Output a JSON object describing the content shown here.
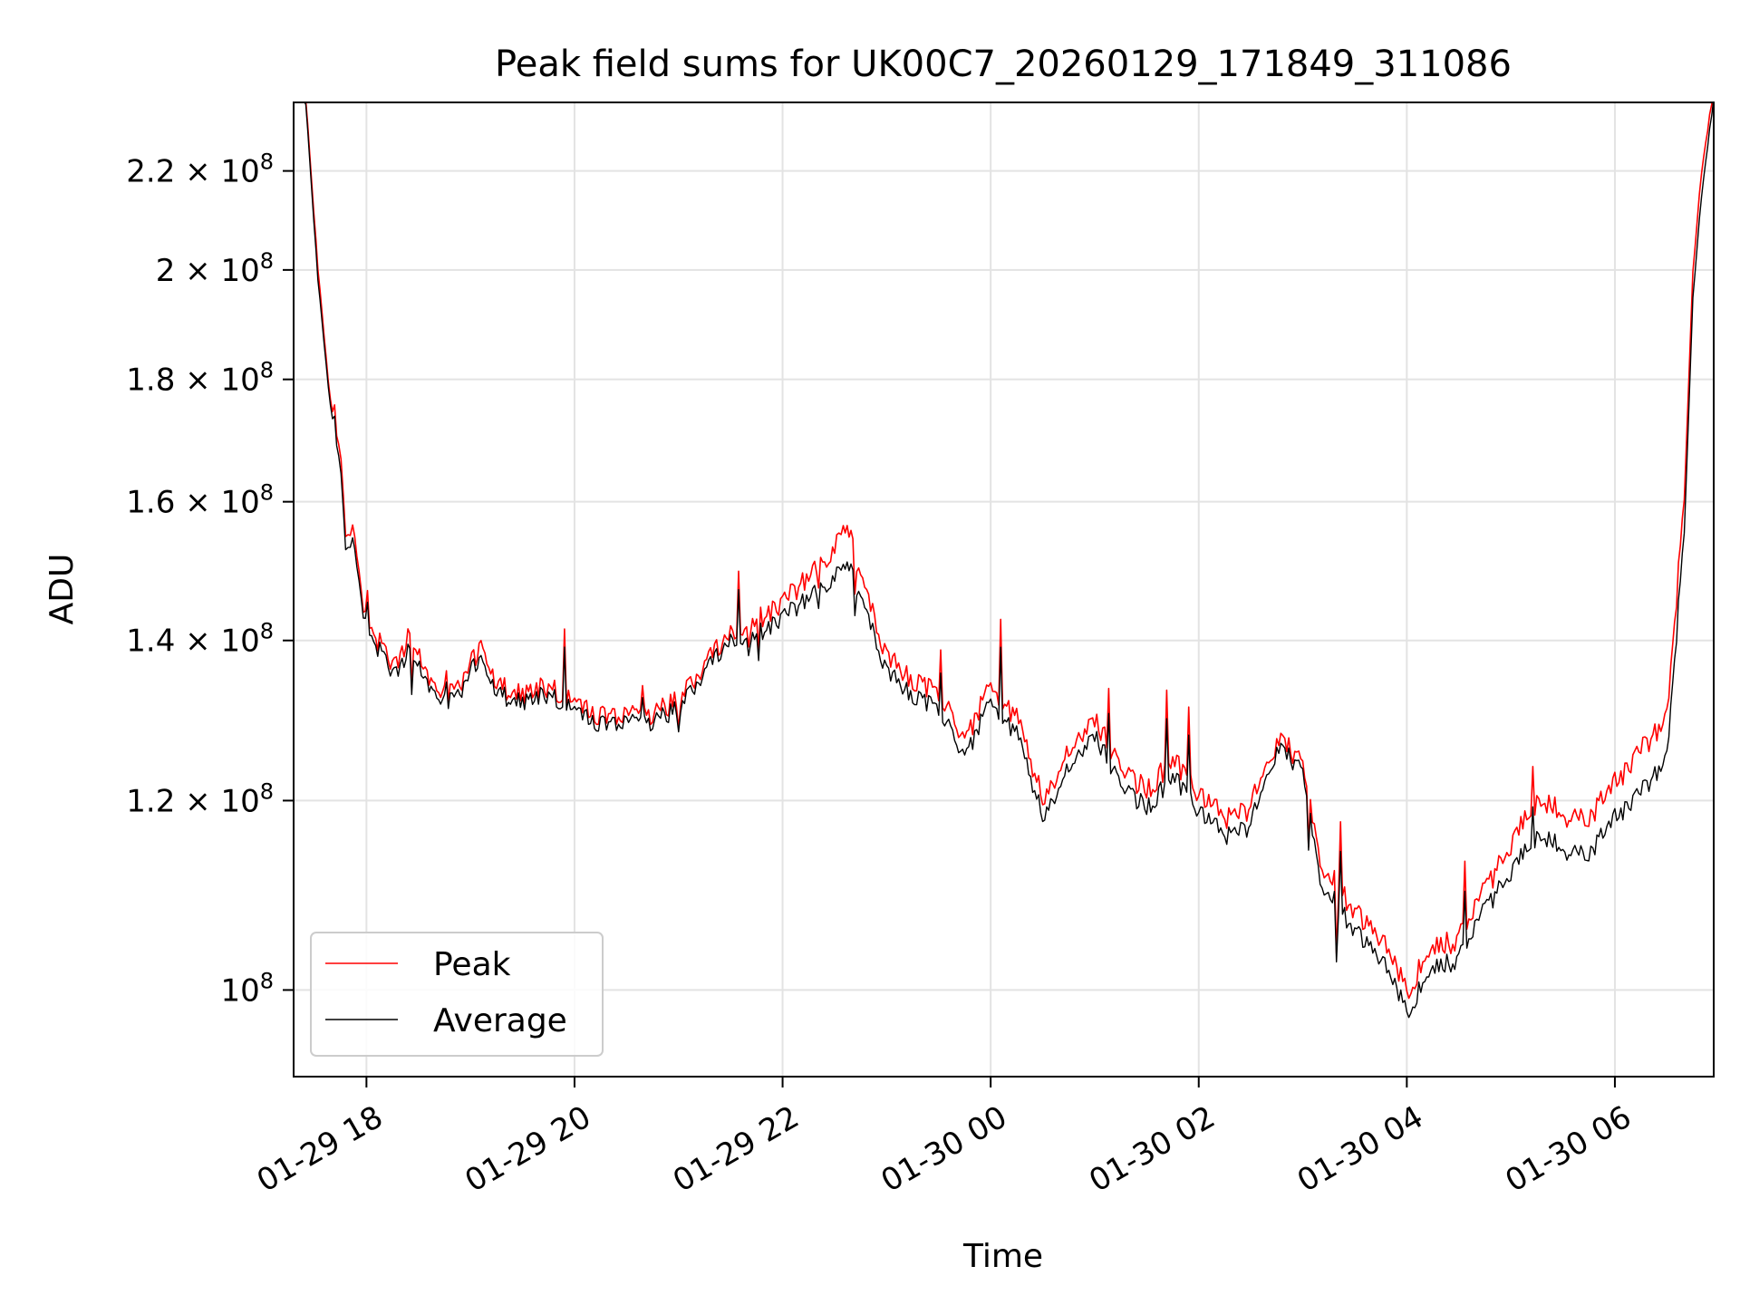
{
  "chart_data": {
    "type": "line",
    "title": "Peak field sums for UK00C7_20260129_171849_311086",
    "xlabel": "Time",
    "ylabel": "ADU",
    "x_start": "2026-01-29T17:18",
    "x_end": "2026-01-30T06:57",
    "xlim": [
      "2026-01-29T17:18",
      "2026-01-30T06:57"
    ],
    "ylim": [
      92000000,
      235000000
    ],
    "y_scale": "log",
    "grid": true,
    "legend_position": "lower-left",
    "x_ticks": [
      {
        "value": "2026-01-29T18:00",
        "label": "01-29 18"
      },
      {
        "value": "2026-01-29T20:00",
        "label": "01-29 20"
      },
      {
        "value": "2026-01-29T22:00",
        "label": "01-29 22"
      },
      {
        "value": "2026-01-30T00:00",
        "label": "01-30 00"
      },
      {
        "value": "2026-01-30T02:00",
        "label": "01-30 02"
      },
      {
        "value": "2026-01-30T04:00",
        "label": "01-30 04"
      },
      {
        "value": "2026-01-30T06:00",
        "label": "01-30 06"
      }
    ],
    "y_ticks": [
      {
        "value": 100000000,
        "mant": "",
        "exp": "8"
      },
      {
        "value": 120000000,
        "mant": "1.2 × ",
        "exp": "8"
      },
      {
        "value": 140000000,
        "mant": "1.4 × ",
        "exp": "8"
      },
      {
        "value": 160000000,
        "mant": "1.6 × ",
        "exp": "8"
      },
      {
        "value": 180000000,
        "mant": "1.8 × ",
        "exp": "8"
      },
      {
        "value": 200000000,
        "mant": "2 × ",
        "exp": "8"
      },
      {
        "value": 220000000,
        "mant": "2.2 × ",
        "exp": "8"
      }
    ],
    "series": [
      {
        "name": "Peak",
        "color": "#ff0000",
        "points": [
          [
            "2026-01-29T17:18",
            238000000
          ],
          [
            "2026-01-29T17:25",
            236000000
          ],
          [
            "2026-01-29T17:32",
            200000000
          ],
          [
            "2026-01-29T17:38",
            180000000
          ],
          [
            "2026-01-29T17:44",
            170000000
          ],
          [
            "2026-01-29T17:48",
            155000000
          ],
          [
            "2026-01-29T17:52",
            157000000
          ],
          [
            "2026-01-29T17:57",
            146000000
          ],
          [
            "2026-01-29T18:03",
            141000000
          ],
          [
            "2026-01-29T18:10",
            139000000
          ],
          [
            "2026-01-29T18:15",
            136000000
          ],
          [
            "2026-01-29T18:25",
            141000000
          ],
          [
            "2026-01-29T18:35",
            135000000
          ],
          [
            "2026-01-29T18:45",
            133000000
          ],
          [
            "2026-01-29T18:55",
            134000000
          ],
          [
            "2026-01-29T19:03",
            138000000
          ],
          [
            "2026-01-29T19:05",
            140000000
          ],
          [
            "2026-01-29T19:15",
            134000000
          ],
          [
            "2026-01-29T19:30",
            133000000
          ],
          [
            "2026-01-29T19:45",
            134000000
          ],
          [
            "2026-01-29T20:00",
            132000000
          ],
          [
            "2026-01-29T20:15",
            130000000
          ],
          [
            "2026-01-29T20:30",
            131000000
          ],
          [
            "2026-01-29T20:45",
            130500000
          ],
          [
            "2026-01-29T21:00",
            132000000
          ],
          [
            "2026-01-29T21:15",
            137000000
          ],
          [
            "2026-01-29T21:30",
            141000000
          ],
          [
            "2026-01-29T21:45",
            143000000
          ],
          [
            "2026-01-29T22:00",
            145000000
          ],
          [
            "2026-01-29T22:15",
            149000000
          ],
          [
            "2026-01-29T22:30",
            152000000
          ],
          [
            "2026-01-29T22:35",
            158000000
          ],
          [
            "2026-01-29T22:45",
            149000000
          ],
          [
            "2026-01-29T23:00",
            138000000
          ],
          [
            "2026-01-29T23:15",
            135000000
          ],
          [
            "2026-01-29T23:30",
            133000000
          ],
          [
            "2026-01-29T23:45",
            127000000
          ],
          [
            "2026-01-30T00:00",
            134000000
          ],
          [
            "2026-01-30T00:15",
            130000000
          ],
          [
            "2026-01-30T00:30",
            120000000
          ],
          [
            "2026-01-30T00:45",
            126000000
          ],
          [
            "2026-01-30T01:00",
            130000000
          ],
          [
            "2026-01-30T01:15",
            124000000
          ],
          [
            "2026-01-30T01:30",
            121000000
          ],
          [
            "2026-01-30T01:45",
            125000000
          ],
          [
            "2026-01-30T02:00",
            121000000
          ],
          [
            "2026-01-30T02:15",
            118000000
          ],
          [
            "2026-01-30T02:30",
            119000000
          ],
          [
            "2026-01-30T02:45",
            127000000
          ],
          [
            "2026-01-30T03:00",
            125000000
          ],
          [
            "2026-01-30T03:10",
            113000000
          ],
          [
            "2026-01-30T03:30",
            108000000
          ],
          [
            "2026-01-30T03:45",
            105000000
          ],
          [
            "2026-01-30T04:00",
            100000000
          ],
          [
            "2026-01-30T04:15",
            104000000
          ],
          [
            "2026-01-30T04:30",
            105000000
          ],
          [
            "2026-01-30T04:45",
            110000000
          ],
          [
            "2026-01-30T05:00",
            115000000
          ],
          [
            "2026-01-30T05:15",
            120000000
          ],
          [
            "2026-01-30T05:30",
            119000000
          ],
          [
            "2026-01-30T05:45",
            118000000
          ],
          [
            "2026-01-30T06:00",
            122000000
          ],
          [
            "2026-01-30T06:15",
            126000000
          ],
          [
            "2026-01-30T06:30",
            130000000
          ],
          [
            "2026-01-30T06:40",
            160000000
          ],
          [
            "2026-01-30T06:45",
            200000000
          ],
          [
            "2026-01-30T06:50",
            220000000
          ],
          [
            "2026-01-30T06:57",
            238000000
          ]
        ]
      },
      {
        "name": "Average",
        "color": "#000000",
        "points": [
          [
            "2026-01-29T17:18",
            237000000
          ],
          [
            "2026-01-29T17:25",
            235000000
          ],
          [
            "2026-01-29T17:32",
            198000000
          ],
          [
            "2026-01-29T17:38",
            179000000
          ],
          [
            "2026-01-29T17:44",
            168000000
          ],
          [
            "2026-01-29T17:48",
            153000000
          ],
          [
            "2026-01-29T17:52",
            155000000
          ],
          [
            "2026-01-29T17:57",
            145000000
          ],
          [
            "2026-01-29T18:03",
            140000000
          ],
          [
            "2026-01-29T18:10",
            138000000
          ],
          [
            "2026-01-29T18:15",
            135000000
          ],
          [
            "2026-01-29T18:25",
            139000000
          ],
          [
            "2026-01-29T18:35",
            134000000
          ],
          [
            "2026-01-29T18:45",
            132000000
          ],
          [
            "2026-01-29T18:55",
            133000000
          ],
          [
            "2026-01-29T19:03",
            137000000
          ],
          [
            "2026-01-29T19:05",
            138000000
          ],
          [
            "2026-01-29T19:15",
            133000000
          ],
          [
            "2026-01-29T19:30",
            132000000
          ],
          [
            "2026-01-29T19:45",
            133000000
          ],
          [
            "2026-01-29T20:00",
            131000000
          ],
          [
            "2026-01-29T20:15",
            129000000
          ],
          [
            "2026-01-29T20:30",
            130000000
          ],
          [
            "2026-01-29T20:45",
            129500000
          ],
          [
            "2026-01-29T21:00",
            131000000
          ],
          [
            "2026-01-29T21:15",
            136000000
          ],
          [
            "2026-01-29T21:30",
            140000000
          ],
          [
            "2026-01-29T21:45",
            141000000
          ],
          [
            "2026-01-29T22:00",
            143000000
          ],
          [
            "2026-01-29T22:15",
            146000000
          ],
          [
            "2026-01-29T22:30",
            148000000
          ],
          [
            "2026-01-29T22:35",
            152000000
          ],
          [
            "2026-01-29T22:45",
            146000000
          ],
          [
            "2026-01-29T23:00",
            136000000
          ],
          [
            "2026-01-29T23:15",
            133000000
          ],
          [
            "2026-01-29T23:30",
            131000000
          ],
          [
            "2026-01-29T23:45",
            125000000
          ],
          [
            "2026-01-30T00:00",
            132000000
          ],
          [
            "2026-01-30T00:15",
            128000000
          ],
          [
            "2026-01-30T00:30",
            118000000
          ],
          [
            "2026-01-30T00:45",
            124000000
          ],
          [
            "2026-01-30T01:00",
            128000000
          ],
          [
            "2026-01-30T01:15",
            122000000
          ],
          [
            "2026-01-30T01:30",
            119000000
          ],
          [
            "2026-01-30T01:45",
            123000000
          ],
          [
            "2026-01-30T02:00",
            119000000
          ],
          [
            "2026-01-30T02:15",
            116000000
          ],
          [
            "2026-01-30T02:30",
            117000000
          ],
          [
            "2026-01-30T02:45",
            126000000
          ],
          [
            "2026-01-30T03:00",
            124000000
          ],
          [
            "2026-01-30T03:10",
            111000000
          ],
          [
            "2026-01-30T03:30",
            106000000
          ],
          [
            "2026-01-30T03:45",
            103000000
          ],
          [
            "2026-01-30T04:00",
            98000000
          ],
          [
            "2026-01-30T04:15",
            102000000
          ],
          [
            "2026-01-30T04:30",
            103000000
          ],
          [
            "2026-01-30T04:45",
            108000000
          ],
          [
            "2026-01-30T05:00",
            112000000
          ],
          [
            "2026-01-30T05:15",
            116000000
          ],
          [
            "2026-01-30T05:30",
            115000000
          ],
          [
            "2026-01-30T05:45",
            114000000
          ],
          [
            "2026-01-30T06:00",
            118000000
          ],
          [
            "2026-01-30T06:15",
            121000000
          ],
          [
            "2026-01-30T06:30",
            125000000
          ],
          [
            "2026-01-30T06:40",
            155000000
          ],
          [
            "2026-01-30T06:45",
            195000000
          ],
          [
            "2026-01-30T06:50",
            215000000
          ],
          [
            "2026-01-30T06:57",
            236000000
          ]
        ]
      }
    ]
  }
}
